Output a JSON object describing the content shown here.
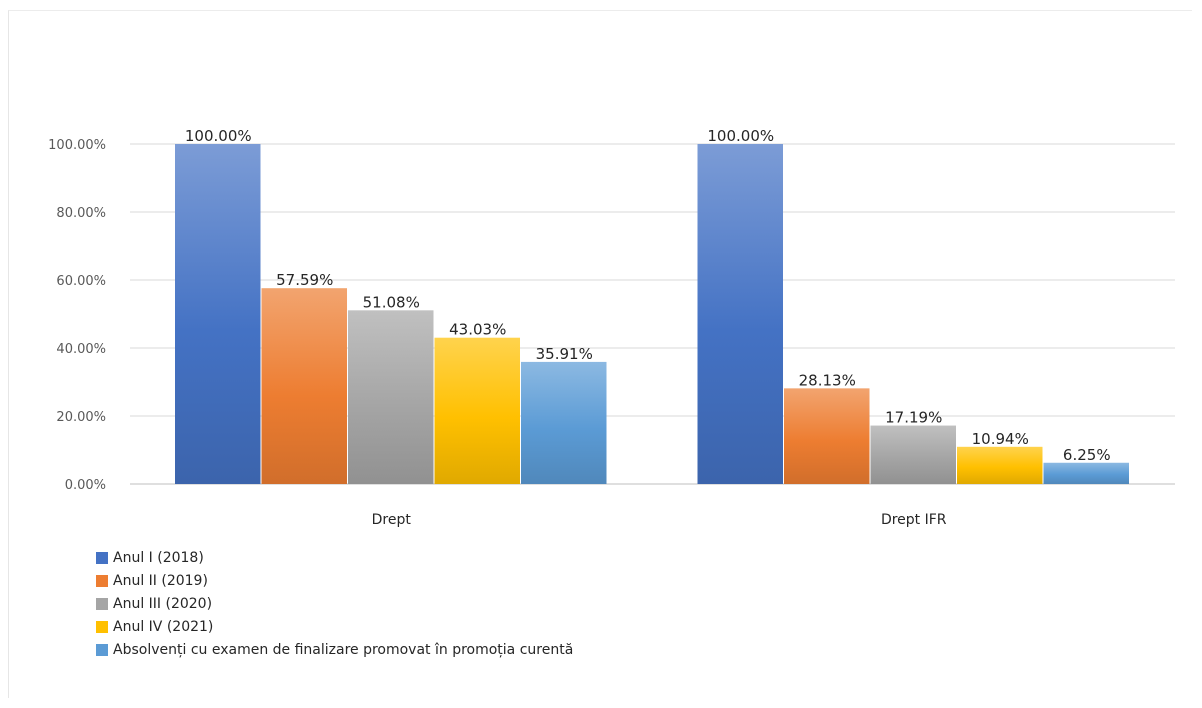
{
  "chart_data": {
    "type": "bar",
    "categories": [
      "Drept",
      "Drept IFR"
    ],
    "series": [
      {
        "name": "Anul I (2018)",
        "values": [
          100.0,
          100.0
        ],
        "labels": [
          "100.00%",
          "100.00%"
        ],
        "color": "#4472c4"
      },
      {
        "name": "Anul II (2019)",
        "values": [
          57.59,
          28.13
        ],
        "labels": [
          "57.59%",
          "28.13%"
        ],
        "color": "#ed7d31"
      },
      {
        "name": "Anul III (2020)",
        "values": [
          51.08,
          17.19
        ],
        "labels": [
          "51.08%",
          "17.19%"
        ],
        "color": "#a5a5a5"
      },
      {
        "name": "Anul IV (2021)",
        "values": [
          43.03,
          10.94
        ],
        "labels": [
          "43.03%",
          "10.94%"
        ],
        "color": "#ffc000"
      },
      {
        "name": "Absolvenți cu examen de finalizare promovat în promoția curentă",
        "values": [
          35.91,
          6.25
        ],
        "labels": [
          "35.91%",
          "6.25%"
        ],
        "color": "#5b9bd5"
      }
    ],
    "yticks": [
      "0.00%",
      "20.00%",
      "40.00%",
      "60.00%",
      "80.00%",
      "100.00%"
    ],
    "ylim": [
      0,
      100
    ],
    "grid": true,
    "legend_position": "bottom-left",
    "title": "",
    "xlabel": "",
    "ylabel": ""
  }
}
